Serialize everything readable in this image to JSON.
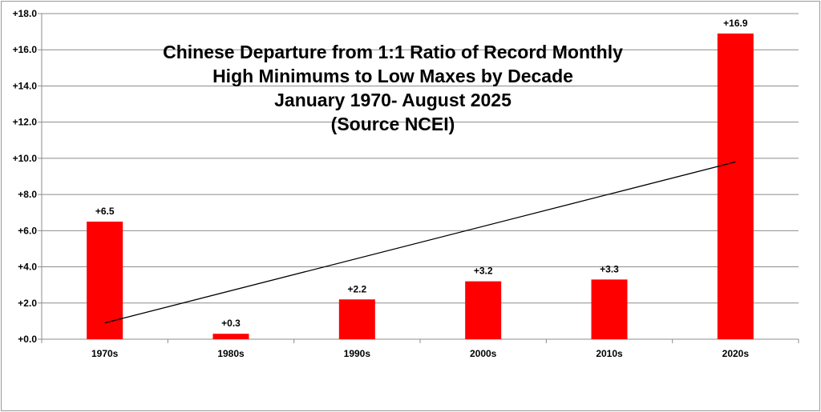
{
  "chart_data": {
    "type": "bar",
    "title_lines": [
      "Chinese Departure from 1:1 Ratio of Record Monthly",
      "High Minimums to Low Maxes by Decade",
      "January 1970- August 2025",
      "(Source NCEI)"
    ],
    "categories": [
      "1970s",
      "1980s",
      "1990s",
      "2000s",
      "2010s",
      "2020s"
    ],
    "values": [
      6.5,
      0.3,
      2.2,
      3.2,
      3.3,
      16.9
    ],
    "data_labels": [
      "+6.5",
      "+0.3",
      "+2.2",
      "+3.2",
      "+3.3",
      "+16.9"
    ],
    "ylim": [
      0,
      18
    ],
    "yticks": [
      0,
      2,
      4,
      6,
      8,
      10,
      12,
      14,
      16,
      18
    ],
    "ytick_labels": [
      "+0.0",
      "+2.0",
      "+4.0",
      "+6.0",
      "+8.0",
      "+10.0",
      "+12.0",
      "+14.0",
      "+16.0",
      "+18.0"
    ],
    "trendline": {
      "start": 0.9,
      "end": 9.8
    },
    "grid": true,
    "legend": "none",
    "colors": {
      "bar": "#ff0000",
      "trendline": "#000000",
      "grid": "#8c8c8c",
      "axis": "#8c8c8c"
    }
  }
}
